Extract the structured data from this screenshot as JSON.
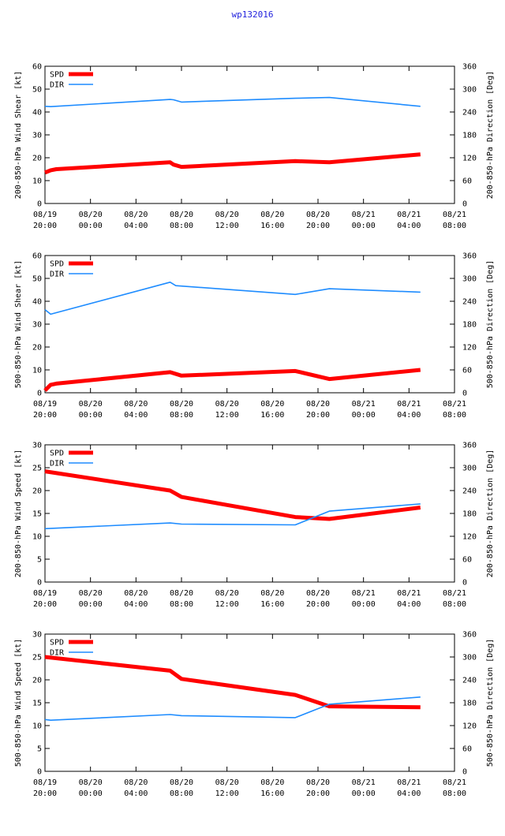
{
  "page": {
    "title": "wp132016"
  },
  "colors": {
    "spd": "#ff0000",
    "dir": "#1e8cff",
    "title": "#2222dd"
  },
  "x_ticks": [
    [
      "08/19",
      "20:00"
    ],
    [
      "08/20",
      "00:00"
    ],
    [
      "08/20",
      "04:00"
    ],
    [
      "08/20",
      "08:00"
    ],
    [
      "08/20",
      "12:00"
    ],
    [
      "08/20",
      "16:00"
    ],
    [
      "08/20",
      "20:00"
    ],
    [
      "08/21",
      "00:00"
    ],
    [
      "08/21",
      "04:00"
    ],
    [
      "08/21",
      "08:00"
    ]
  ],
  "chart_data": [
    {
      "type": "line",
      "title": "",
      "xlabel": "",
      "ylabel": "200-850-hPa Wind Shear [kt]",
      "y2label": "200-850-hPa Direction [Deg]",
      "xlim": [
        0,
        36
      ],
      "ylim": [
        0,
        60
      ],
      "y2lim": [
        0,
        360
      ],
      "yticks": [
        0,
        10,
        20,
        30,
        40,
        50,
        60
      ],
      "y2ticks": [
        0,
        60,
        120,
        180,
        240,
        300,
        360
      ],
      "legend": [
        "SPD",
        "DIR"
      ],
      "legend_position": "top-left",
      "series": [
        {
          "name": "SPD",
          "axis": "left",
          "x": [
            0,
            0.5,
            1,
            11,
            11.3,
            12,
            22,
            25,
            33
          ],
          "y": [
            13.5,
            14.5,
            15,
            18,
            17,
            16,
            18.5,
            18,
            21.5
          ]
        },
        {
          "name": "DIR",
          "axis": "right",
          "x": [
            0,
            0.5,
            11,
            11.3,
            12,
            22,
            25,
            33
          ],
          "y": [
            255,
            254,
            273,
            272,
            266,
            276,
            278,
            255
          ]
        }
      ]
    },
    {
      "type": "line",
      "title": "",
      "xlabel": "",
      "ylabel": "500-850-hPa Wind Shear [kt]",
      "y2label": "500-850-hPa Direction [Deg]",
      "xlim": [
        0,
        36
      ],
      "ylim": [
        0,
        60
      ],
      "y2lim": [
        0,
        360
      ],
      "yticks": [
        0,
        10,
        20,
        30,
        40,
        50,
        60
      ],
      "y2ticks": [
        0,
        60,
        120,
        180,
        240,
        300,
        360
      ],
      "legend": [
        "SPD",
        "DIR"
      ],
      "legend_position": "top-left",
      "series": [
        {
          "name": "SPD",
          "axis": "left",
          "x": [
            0,
            0.5,
            1,
            11,
            12,
            22,
            25,
            33
          ],
          "y": [
            1,
            3.5,
            4,
            9,
            7.5,
            9.5,
            6,
            10
          ]
        },
        {
          "name": "DIR",
          "axis": "right",
          "x": [
            0,
            0.5,
            11,
            11.5,
            22,
            25,
            33
          ],
          "y": [
            218,
            206,
            290,
            281,
            258,
            273,
            264
          ]
        }
      ]
    },
    {
      "type": "line",
      "title": "",
      "xlabel": "",
      "ylabel": "200-850-hPa Wind Speed [kt]",
      "y2label": "200-850-hPa Direction [Deg]",
      "xlim": [
        0,
        36
      ],
      "ylim": [
        0,
        30
      ],
      "y2lim": [
        0,
        360
      ],
      "yticks": [
        0,
        5,
        10,
        15,
        20,
        25,
        30
      ],
      "y2ticks": [
        0,
        60,
        120,
        180,
        240,
        300,
        360
      ],
      "legend": [
        "SPD",
        "DIR"
      ],
      "legend_position": "top-left",
      "series": [
        {
          "name": "SPD",
          "axis": "left",
          "x": [
            0,
            11,
            12,
            22,
            25,
            33
          ],
          "y": [
            24.2,
            20,
            18.6,
            14.2,
            13.8,
            16.3
          ]
        },
        {
          "name": "DIR",
          "axis": "right",
          "x": [
            0,
            11,
            12,
            22,
            25,
            33
          ],
          "y": [
            140,
            155,
            152,
            150,
            186,
            205
          ]
        }
      ]
    },
    {
      "type": "line",
      "title": "",
      "xlabel": "",
      "ylabel": "500-850-hPa Wind Speed [kt]",
      "y2label": "500-850-hPa Direction [Deg]",
      "xlim": [
        0,
        36
      ],
      "ylim": [
        0,
        30
      ],
      "y2lim": [
        0,
        360
      ],
      "yticks": [
        0,
        5,
        10,
        15,
        20,
        25,
        30
      ],
      "y2ticks": [
        0,
        60,
        120,
        180,
        240,
        300,
        360
      ],
      "legend": [
        "SPD",
        "DIR"
      ],
      "legend_position": "top-left",
      "series": [
        {
          "name": "SPD",
          "axis": "left",
          "x": [
            0,
            11,
            12,
            22,
            25,
            33
          ],
          "y": [
            25,
            22,
            20.2,
            16.7,
            14.2,
            14
          ]
        },
        {
          "name": "DIR",
          "axis": "right",
          "x": [
            0,
            0.5,
            11,
            12,
            22,
            25,
            33
          ],
          "y": [
            136,
            134,
            149,
            146,
            141,
            176,
            195
          ]
        }
      ]
    }
  ]
}
